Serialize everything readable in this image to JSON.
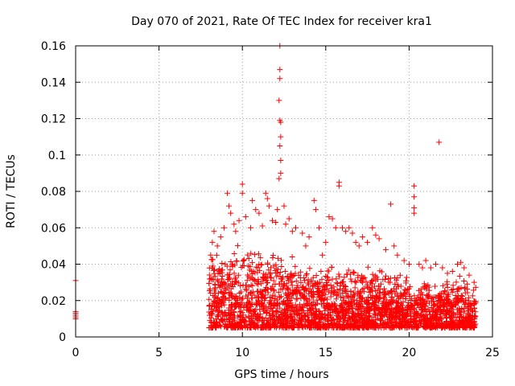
{
  "chart_data": {
    "type": "scatter",
    "title": "Day 070 of 2021, Rate Of TEC Index for receiver kra1",
    "xlabel": "GPS time / hours",
    "ylabel": "ROTI / TECUs",
    "xlim": [
      0,
      25
    ],
    "ylim": [
      0,
      0.16
    ],
    "xticks": [
      0,
      5,
      10,
      15,
      20,
      25
    ],
    "yticks": [
      0,
      0.02,
      0.04,
      0.06,
      0.08,
      0.1,
      0.12,
      0.14,
      0.16
    ],
    "xtick_labels": [
      "0",
      "5",
      "10",
      "15",
      "20",
      "25"
    ],
    "ytick_labels": [
      "0",
      "0.02",
      "0.04",
      "0.06",
      "0.08",
      "0.1",
      "0.12",
      "0.14",
      "0.16"
    ],
    "grid": true,
    "marker": "+",
    "color": "#ff0000",
    "series": [
      {
        "name": "kra1",
        "points": [
          [
            0.0,
            0.031
          ],
          [
            0.0,
            0.014
          ],
          [
            0.0,
            0.013
          ],
          [
            0.0,
            0.012
          ],
          [
            0.0,
            0.011
          ],
          [
            0.0,
            0.01
          ],
          [
            8.1,
            0.045
          ],
          [
            8.2,
            0.052
          ],
          [
            8.3,
            0.058
          ],
          [
            8.5,
            0.05
          ],
          [
            8.7,
            0.055
          ],
          [
            8.9,
            0.06
          ],
          [
            9.1,
            0.079
          ],
          [
            9.2,
            0.072
          ],
          [
            9.3,
            0.068
          ],
          [
            9.5,
            0.062
          ],
          [
            9.6,
            0.058
          ],
          [
            9.8,
            0.064
          ],
          [
            10.0,
            0.084
          ],
          [
            10.0,
            0.079
          ],
          [
            10.2,
            0.066
          ],
          [
            10.5,
            0.06
          ],
          [
            10.6,
            0.075
          ],
          [
            10.8,
            0.07
          ],
          [
            11.0,
            0.068
          ],
          [
            11.2,
            0.061
          ],
          [
            11.4,
            0.079
          ],
          [
            11.5,
            0.076
          ],
          [
            11.6,
            0.072
          ],
          [
            11.8,
            0.064
          ],
          [
            12.0,
            0.063
          ],
          [
            12.1,
            0.07
          ],
          [
            12.2,
            0.087
          ],
          [
            12.25,
            0.105
          ],
          [
            12.3,
            0.11
          ],
          [
            12.2,
            0.13
          ],
          [
            12.25,
            0.119
          ],
          [
            12.3,
            0.118
          ],
          [
            12.25,
            0.142
          ],
          [
            12.25,
            0.147
          ],
          [
            12.25,
            0.16
          ],
          [
            12.3,
            0.097
          ],
          [
            12.3,
            0.09
          ],
          [
            12.5,
            0.072
          ],
          [
            12.6,
            0.062
          ],
          [
            12.8,
            0.065
          ],
          [
            13.0,
            0.058
          ],
          [
            13.2,
            0.06
          ],
          [
            13.6,
            0.057
          ],
          [
            13.8,
            0.05
          ],
          [
            14.0,
            0.055
          ],
          [
            14.3,
            0.075
          ],
          [
            14.4,
            0.07
          ],
          [
            14.6,
            0.06
          ],
          [
            14.8,
            0.045
          ],
          [
            15.0,
            0.052
          ],
          [
            15.2,
            0.066
          ],
          [
            15.4,
            0.065
          ],
          [
            15.6,
            0.06
          ],
          [
            15.8,
            0.085
          ],
          [
            15.8,
            0.083
          ],
          [
            16.0,
            0.06
          ],
          [
            16.2,
            0.058
          ],
          [
            16.4,
            0.06
          ],
          [
            16.6,
            0.057
          ],
          [
            16.8,
            0.052
          ],
          [
            17.0,
            0.05
          ],
          [
            17.2,
            0.055
          ],
          [
            17.5,
            0.052
          ],
          [
            17.8,
            0.06
          ],
          [
            18.0,
            0.056
          ],
          [
            18.2,
            0.054
          ],
          [
            18.6,
            0.048
          ],
          [
            18.9,
            0.073
          ],
          [
            19.1,
            0.05
          ],
          [
            19.3,
            0.045
          ],
          [
            19.7,
            0.042
          ],
          [
            20.0,
            0.04
          ],
          [
            20.3,
            0.083
          ],
          [
            20.3,
            0.077
          ],
          [
            20.3,
            0.071
          ],
          [
            20.3,
            0.068
          ],
          [
            20.6,
            0.04
          ],
          [
            20.8,
            0.038
          ],
          [
            21.0,
            0.042
          ],
          [
            21.3,
            0.038
          ],
          [
            21.6,
            0.04
          ],
          [
            21.8,
            0.107
          ],
          [
            22.0,
            0.038
          ],
          [
            22.3,
            0.035
          ],
          [
            22.6,
            0.036
          ],
          [
            22.9,
            0.04
          ],
          [
            23.1,
            0.041
          ],
          [
            23.3,
            0.038
          ],
          [
            23.6,
            0.034
          ],
          [
            23.9,
            0.03
          ]
        ],
        "dense_band": {
          "x_range": [
            8.0,
            24.0
          ],
          "typical_range": [
            0.005,
            0.04
          ],
          "envelope": [
            [
              8.0,
              0.046
            ],
            [
              9.0,
              0.05
            ],
            [
              10.0,
              0.052
            ],
            [
              11.0,
              0.05
            ],
            [
              12.0,
              0.047
            ],
            [
              13.0,
              0.045
            ],
            [
              14.0,
              0.042
            ],
            [
              15.0,
              0.042
            ],
            [
              16.0,
              0.04
            ],
            [
              17.0,
              0.038
            ],
            [
              18.0,
              0.04
            ],
            [
              19.0,
              0.036
            ],
            [
              20.0,
              0.034
            ],
            [
              21.0,
              0.032
            ],
            [
              22.0,
              0.03
            ],
            [
              23.0,
              0.036
            ],
            [
              24.0,
              0.03
            ]
          ]
        }
      }
    ]
  }
}
